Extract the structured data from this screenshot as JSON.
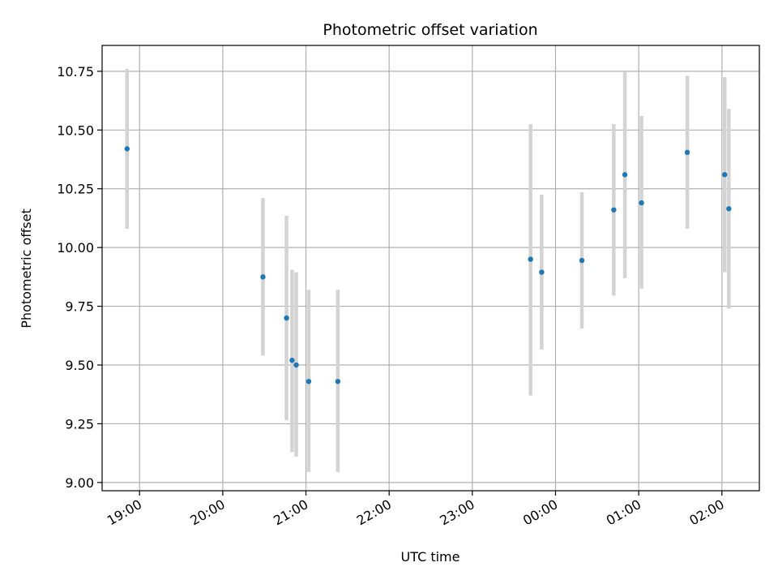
{
  "chart_data": {
    "type": "scatter",
    "title": "Photometric offset variation",
    "xlabel": "UTC time",
    "ylabel": "Photometric offset",
    "x_ticks": [
      "19:00",
      "20:00",
      "21:00",
      "22:00",
      "23:00",
      "00:00",
      "01:00",
      "02:00"
    ],
    "y_ticks": [
      "9.00",
      "9.25",
      "9.50",
      "9.75",
      "10.00",
      "10.25",
      "10.50",
      "10.75"
    ],
    "xlim": [
      "18:33",
      "02:27"
    ],
    "ylim": [
      8.965,
      10.86
    ],
    "grid": true,
    "colors": {
      "points": "#1f77b4",
      "error_bars": "#d3d3d3",
      "grid": "#b0b0b0"
    },
    "points": [
      {
        "t": "18:51",
        "y": 10.42,
        "low": 10.08,
        "high": 10.76
      },
      {
        "t": "20:29",
        "y": 9.875,
        "low": 9.54,
        "high": 10.21
      },
      {
        "t": "20:46",
        "y": 9.7,
        "low": 9.265,
        "high": 10.135
      },
      {
        "t": "20:50",
        "y": 9.52,
        "low": 9.13,
        "high": 9.905
      },
      {
        "t": "20:53",
        "y": 9.5,
        "low": 9.11,
        "high": 9.895
      },
      {
        "t": "21:02",
        "y": 9.43,
        "low": 9.045,
        "high": 9.82
      },
      {
        "t": "21:23",
        "y": 9.43,
        "low": 9.045,
        "high": 9.82
      },
      {
        "t": "23:42",
        "y": 9.95,
        "low": 9.37,
        "high": 10.525
      },
      {
        "t": "23:50",
        "y": 9.895,
        "low": 9.565,
        "high": 10.225
      },
      {
        "t": "00:19",
        "y": 9.945,
        "low": 9.655,
        "high": 10.235
      },
      {
        "t": "00:42",
        "y": 10.16,
        "low": 9.795,
        "high": 10.525
      },
      {
        "t": "00:50",
        "y": 10.31,
        "low": 9.87,
        "high": 10.75
      },
      {
        "t": "01:02",
        "y": 10.19,
        "low": 9.825,
        "high": 10.56
      },
      {
        "t": "01:35",
        "y": 10.405,
        "low": 10.08,
        "high": 10.73
      },
      {
        "t": "02:02",
        "y": 10.31,
        "low": 9.895,
        "high": 10.725
      },
      {
        "t": "02:05",
        "y": 10.165,
        "low": 9.74,
        "high": 10.59
      }
    ]
  }
}
